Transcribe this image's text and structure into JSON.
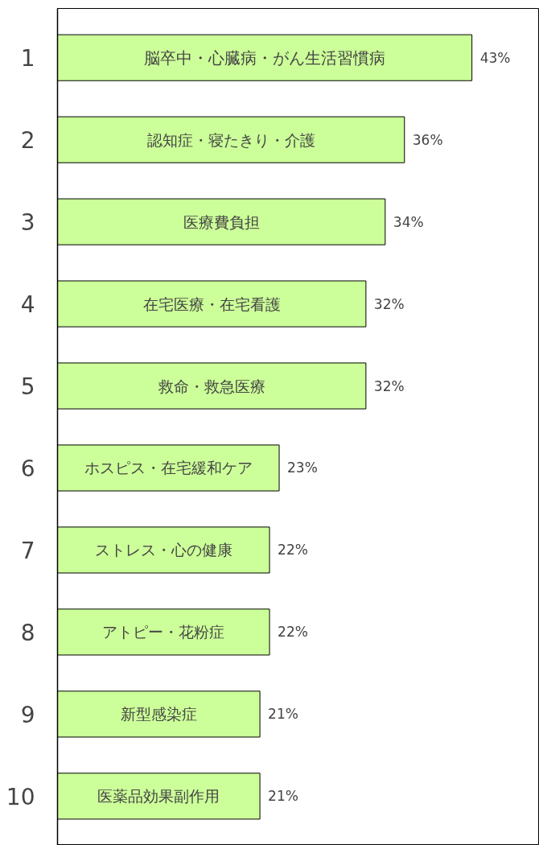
{
  "chart_data": {
    "type": "bar",
    "orientation": "horizontal",
    "categories": [
      "脳卒中・心臓病・がん生活習慣病",
      "認知症・寝たきり・介護",
      "医療費負担",
      "在宅医療・在宅看護",
      "救命・救急医療",
      "ホスピス・在宅緩和ケア",
      "ストレス・心の健康",
      "アトピー・花粉症",
      "新型感染症",
      "医薬品効果副作用"
    ],
    "values": [
      43,
      36,
      34,
      32,
      32,
      23,
      22,
      22,
      21,
      21
    ],
    "value_labels": [
      "43%",
      "36%",
      "34%",
      "32%",
      "32%",
      "23%",
      "22%",
      "22%",
      "21%",
      "21%"
    ],
    "annotations": [
      "1",
      "2",
      "3",
      "4",
      "5",
      "6",
      "7",
      "8",
      "9",
      "10"
    ],
    "color": "#ccff99",
    "xlim": [
      0,
      50
    ],
    "tick_labels": "y",
    "grid": false
  }
}
